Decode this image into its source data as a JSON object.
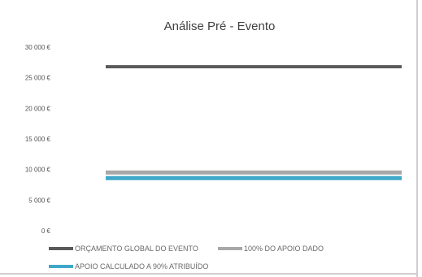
{
  "chart_data": {
    "type": "line",
    "title": "Análise Pré - Evento",
    "xlabel": "",
    "ylabel": "",
    "ylim": [
      0,
      30000
    ],
    "yticks": [
      "30 000 €",
      "25 000 €",
      "20 000 €",
      "15 000 €",
      "10 000 €",
      "5 000 €",
      "0 €"
    ],
    "ytick_values": [
      30000,
      25000,
      20000,
      15000,
      10000,
      5000,
      0
    ],
    "grid": false,
    "legend_position": "bottom",
    "series": [
      {
        "name": "ORÇAMENTO GLOBAL DO EVENTO",
        "values": [
          26800,
          26800
        ],
        "color": "#5a5a5a"
      },
      {
        "name": "100% DO APOIO DADO",
        "values": [
          9500,
          9500
        ],
        "color": "#a8a8a8"
      },
      {
        "name": "APOIO CALCULADO A 90% ATRIBUÍDO",
        "values": [
          8600,
          8600
        ],
        "color": "#3fa8c8"
      }
    ]
  }
}
